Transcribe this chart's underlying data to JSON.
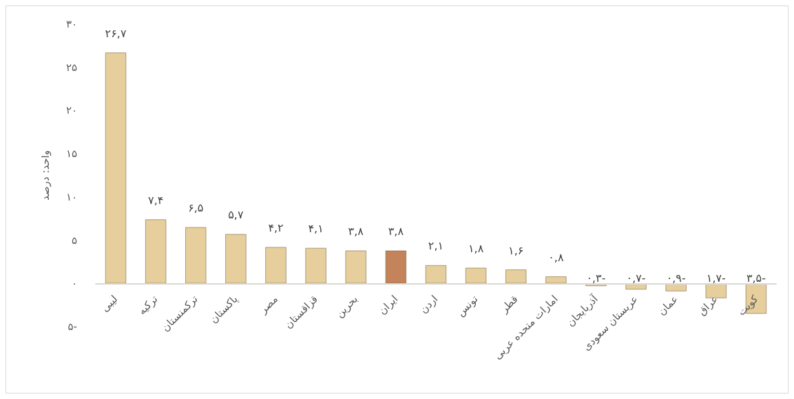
{
  "chart_data": {
    "type": "bar",
    "ylabel": "واحد: درصد",
    "categories": [
      "لیبی",
      "ترکیه",
      "ترکمنستان",
      "پاکستان",
      "مصر",
      "قزاقستان",
      "بحرین",
      "ایران",
      "اردن",
      "تونس",
      "قطر",
      "امارات متحده عربی",
      "آذربایجان",
      "عربستان سعودی",
      "عمان",
      "عراق",
      "کویت"
    ],
    "values": [
      26.7,
      7.4,
      6.5,
      5.7,
      4.2,
      4.1,
      3.8,
      3.8,
      2.1,
      1.8,
      1.6,
      0.8,
      -0.3,
      -0.7,
      -0.9,
      -1.7,
      -3.5
    ],
    "colors": [
      "#e6cf9c",
      "#e6cf9c",
      "#e6cf9c",
      "#e6cf9c",
      "#e6cf9c",
      "#e6cf9c",
      "#e6cf9c",
      "#c4835a",
      "#e6cf9c",
      "#e6cf9c",
      "#e6cf9c",
      "#e6cf9c",
      "#e6cf9c",
      "#e6cf9c",
      "#e6cf9c",
      "#e6cf9c",
      "#e6cf9c"
    ],
    "value_labels": [
      "۲۶,۷",
      "۷,۴",
      "۶,۵",
      "۵,۷",
      "۴,۲",
      "۴,۱",
      "۳,۸",
      "۳,۸",
      "۲,۱",
      "۱,۸",
      "۱,۶",
      "۰,۸",
      "-۰,۳",
      "-۰,۷",
      "-۰,۹",
      "-۱,۷",
      "-۳,۵"
    ],
    "ylim": [
      -5,
      30
    ],
    "yticks": [
      {
        "value": -5,
        "label": "-۵"
      },
      {
        "value": 0,
        "label": "۰"
      },
      {
        "value": 5,
        "label": "۵"
      },
      {
        "value": 10,
        "label": "۱۰"
      },
      {
        "value": 15,
        "label": "۱۵"
      },
      {
        "value": 20,
        "label": "۲۰"
      },
      {
        "value": 25,
        "label": "۲۵"
      },
      {
        "value": 30,
        "label": "۳۰"
      }
    ]
  }
}
